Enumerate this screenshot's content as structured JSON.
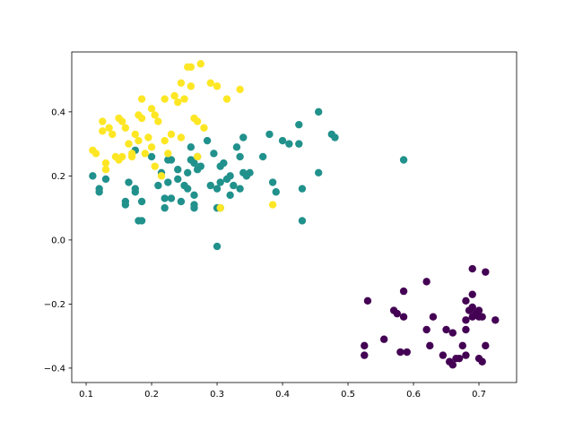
{
  "chart_data": {
    "type": "scatter",
    "xlim": [
      0.078,
      0.7575
    ],
    "ylim": [
      -0.445,
      0.587
    ],
    "xticks": [
      0.1,
      0.2,
      0.3,
      0.4,
      0.5,
      0.6,
      0.7
    ],
    "yticks": [
      {
        "value": -0.4,
        "label": "−0.4"
      },
      {
        "value": -0.2,
        "label": "−0.2"
      },
      {
        "value": 0,
        "label": "0.0"
      },
      0.2,
      0.4
    ],
    "grid": false,
    "series": [
      {
        "color": "#440154",
        "x": [
          0.53,
          0.525,
          0.525,
          0.555,
          0.57,
          0.575,
          0.585,
          0.585,
          0.58,
          0.59,
          0.62,
          0.62,
          0.625,
          0.63,
          0.645,
          0.65,
          0.655,
          0.66,
          0.66,
          0.665,
          0.67,
          0.675,
          0.68,
          0.68,
          0.68,
          0.685,
          0.69,
          0.69,
          0.69,
          0.69,
          0.695,
          0.7,
          0.7,
          0.7,
          0.705,
          0.705,
          0.71,
          0.71,
          0.725,
          0.68
        ],
        "values": [
          -0.19,
          -0.33,
          -0.36,
          -0.31,
          -0.22,
          -0.23,
          -0.16,
          -0.24,
          -0.35,
          -0.35,
          -0.13,
          -0.28,
          -0.33,
          -0.24,
          -0.36,
          -0.28,
          -0.38,
          -0.29,
          -0.39,
          -0.37,
          -0.37,
          -0.33,
          -0.19,
          -0.28,
          -0.36,
          -0.22,
          -0.17,
          -0.09,
          -0.21,
          -0.24,
          -0.23,
          -0.22,
          -0.24,
          -0.37,
          -0.38,
          -0.24,
          -0.33,
          -0.1,
          -0.25,
          -0.25
        ]
      },
      {
        "color": "#21918c",
        "x": [
          0.11,
          0.12,
          0.12,
          0.13,
          0.16,
          0.16,
          0.165,
          0.175,
          0.175,
          0.175,
          0.18,
          0.185,
          0.185,
          0.2,
          0.21,
          0.215,
          0.22,
          0.22,
          0.225,
          0.225,
          0.23,
          0.23,
          0.24,
          0.24,
          0.245,
          0.25,
          0.255,
          0.255,
          0.26,
          0.26,
          0.265,
          0.265,
          0.265,
          0.265,
          0.27,
          0.27,
          0.275,
          0.285,
          0.29,
          0.295,
          0.3,
          0.3,
          0.305,
          0.305,
          0.31,
          0.315,
          0.32,
          0.32,
          0.325,
          0.33,
          0.335,
          0.335,
          0.34,
          0.34,
          0.345,
          0.35,
          0.37,
          0.38,
          0.385,
          0.39,
          0.4,
          0.41,
          0.425,
          0.425,
          0.43,
          0.43,
          0.455,
          0.455,
          0.475,
          0.48,
          0.585,
          0.3,
          0.305
        ],
        "values": [
          0.2,
          0.15,
          0.16,
          0.19,
          0.12,
          0.11,
          0.18,
          0.28,
          0.15,
          0.16,
          0.06,
          0.06,
          0.12,
          0.26,
          0.17,
          0.21,
          0.1,
          0.13,
          0.18,
          0.25,
          0.25,
          0.13,
          0.19,
          0.22,
          0.12,
          0.17,
          0.16,
          0.21,
          0.29,
          0.25,
          0.1,
          0.14,
          0.11,
          0.24,
          0.22,
          0.26,
          0.23,
          0.31,
          0.17,
          0.27,
          0.16,
          0.1,
          0.23,
          0.18,
          0.24,
          0.19,
          0.2,
          0.14,
          0.17,
          0.29,
          0.26,
          0.16,
          0.32,
          0.21,
          0.2,
          0.21,
          0.26,
          0.33,
          0.18,
          0.15,
          0.31,
          0.3,
          0.3,
          0.36,
          0.16,
          0.06,
          0.4,
          0.21,
          0.33,
          0.32,
          0.25,
          -0.02,
          0.1
        ]
      },
      {
        "color": "#fde725",
        "x": [
          0.11,
          0.115,
          0.125,
          0.125,
          0.13,
          0.13,
          0.135,
          0.14,
          0.145,
          0.15,
          0.15,
          0.155,
          0.155,
          0.16,
          0.165,
          0.17,
          0.17,
          0.175,
          0.18,
          0.18,
          0.185,
          0.185,
          0.19,
          0.195,
          0.2,
          0.2,
          0.205,
          0.205,
          0.21,
          0.215,
          0.22,
          0.22,
          0.225,
          0.23,
          0.235,
          0.24,
          0.245,
          0.245,
          0.25,
          0.255,
          0.26,
          0.26,
          0.265,
          0.27,
          0.275,
          0.28,
          0.29,
          0.3,
          0.305,
          0.315,
          0.335,
          0.385,
          0.27
        ],
        "values": [
          0.28,
          0.27,
          0.37,
          0.34,
          0.24,
          0.22,
          0.35,
          0.33,
          0.26,
          0.25,
          0.38,
          0.37,
          0.26,
          0.35,
          0.3,
          0.27,
          0.26,
          0.33,
          0.31,
          0.39,
          0.44,
          0.38,
          0.27,
          0.32,
          0.29,
          0.41,
          0.39,
          0.23,
          0.37,
          0.2,
          0.44,
          0.31,
          0.27,
          0.33,
          0.45,
          0.43,
          0.49,
          0.32,
          0.44,
          0.54,
          0.54,
          0.48,
          0.38,
          0.37,
          0.55,
          0.35,
          0.49,
          0.48,
          0.1,
          0.44,
          0.47,
          0.11,
          0.26
        ]
      }
    ]
  }
}
